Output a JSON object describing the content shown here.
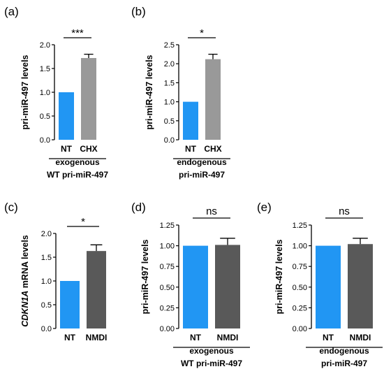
{
  "chart_data": [
    {
      "type": "bar",
      "panel_label": "(a)",
      "ylabel": "pri-miR-497 levels",
      "ylim": [
        0,
        2.0
      ],
      "yticks": [
        "0.0",
        "0.5",
        "1.0",
        "1.5",
        "2.0"
      ],
      "categories": [
        "NT",
        "CHX"
      ],
      "values": [
        1.0,
        1.72
      ],
      "errors": [
        0,
        0.08
      ],
      "colors": [
        "#2196F3",
        "#999999"
      ],
      "significance": "***",
      "xgroup_label": [
        "exogenous",
        "WT pri-miR-497"
      ]
    },
    {
      "type": "bar",
      "panel_label": "(b)",
      "ylabel": "pri-miR-497 levels",
      "ylim": [
        0,
        2.5
      ],
      "yticks": [
        "0.0",
        "0.5",
        "1.0",
        "1.5",
        "2.0",
        "2.5"
      ],
      "categories": [
        "NT",
        "CHX"
      ],
      "values": [
        1.0,
        2.12
      ],
      "errors": [
        0,
        0.13
      ],
      "colors": [
        "#2196F3",
        "#999999"
      ],
      "significance": "*",
      "xgroup_label": [
        "endogenous",
        "pri-miR-497"
      ]
    },
    {
      "type": "bar",
      "panel_label": "(c)",
      "ylabel_italic": "CDKN1A",
      "ylabel": " mRNA levels",
      "ylim": [
        0,
        2.0
      ],
      "yticks": [
        "0.0",
        "0.5",
        "1.0",
        "1.5",
        "2.0"
      ],
      "categories": [
        "NT",
        "NMDI"
      ],
      "values": [
        1.0,
        1.63
      ],
      "errors": [
        0,
        0.13
      ],
      "colors": [
        "#2196F3",
        "#595959"
      ],
      "significance": "*",
      "xgroup_label": []
    },
    {
      "type": "bar",
      "panel_label": "(d)",
      "ylabel": "pri-miR-497 levels",
      "ylim": [
        0,
        1.25
      ],
      "yticks": [
        "0.00",
        "0.25",
        "0.50",
        "0.75",
        "1.00",
        "1.25"
      ],
      "categories": [
        "NT",
        "NMDI"
      ],
      "values": [
        1.0,
        1.01
      ],
      "errors": [
        0,
        0.08
      ],
      "colors": [
        "#2196F3",
        "#595959"
      ],
      "significance": "ns",
      "xgroup_label": [
        "exogenous",
        "WT pri-miR-497"
      ]
    },
    {
      "type": "bar",
      "panel_label": "(e)",
      "ylabel": "pri-miR-497 levels",
      "ylim": [
        0,
        1.25
      ],
      "yticks": [
        "0.00",
        "0.25",
        "0.50",
        "0.75",
        "1.00",
        "1.25"
      ],
      "categories": [
        "NT",
        "NMDI"
      ],
      "values": [
        1.0,
        1.02
      ],
      "errors": [
        0,
        0.07
      ],
      "colors": [
        "#2196F3",
        "#595959"
      ],
      "significance": "ns",
      "xgroup_label": [
        "endogenous",
        "pri-miR-497"
      ]
    }
  ]
}
